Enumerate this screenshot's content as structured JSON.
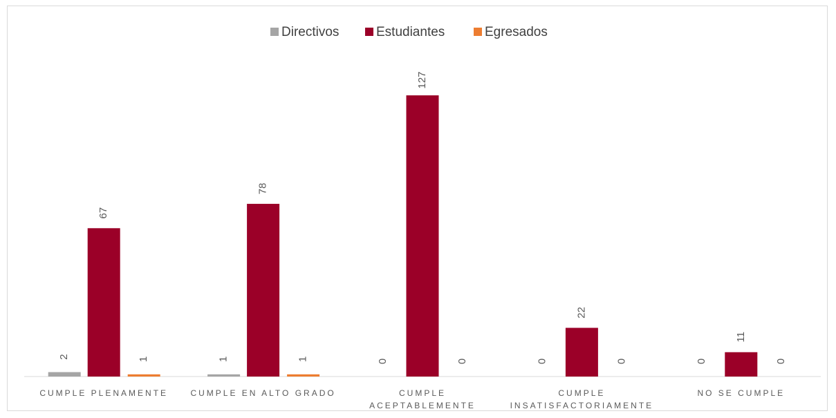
{
  "chart_data": {
    "type": "bar",
    "categories": [
      "CUMPLE PLENAMENTE",
      "CUMPLE EN ALTO GRADO",
      "CUMPLE ACEPTABLEMENTE",
      "CUMPLE INSATISFACTORIAMENTE",
      "NO SE CUMPLE"
    ],
    "series": [
      {
        "name": "Directivos",
        "color": "#a5a5a5",
        "values": [
          2,
          1,
          0,
          0,
          0
        ]
      },
      {
        "name": "Estudiantes",
        "color": "#9b0028",
        "values": [
          67,
          78,
          127,
          22,
          11
        ]
      },
      {
        "name": "Egresados",
        "color": "#ed7d31",
        "values": [
          1,
          1,
          0,
          0,
          0
        ]
      }
    ],
    "legend": "top"
  }
}
